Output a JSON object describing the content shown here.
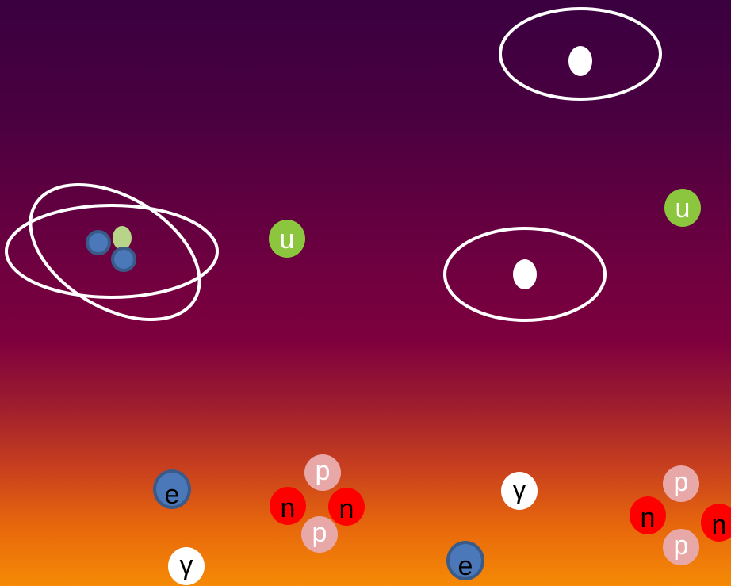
{
  "colors": {
    "electron": "#4a78b8",
    "up_quark": "#8cc63f",
    "proton": "#e8a8a8",
    "neutron": "#ff0000",
    "photon": "#ffffff",
    "orbit": "#ffffff"
  },
  "particles": {
    "up_quark": "u",
    "proton": "p",
    "neutron": "n",
    "electron": "e",
    "photon": "γ"
  }
}
